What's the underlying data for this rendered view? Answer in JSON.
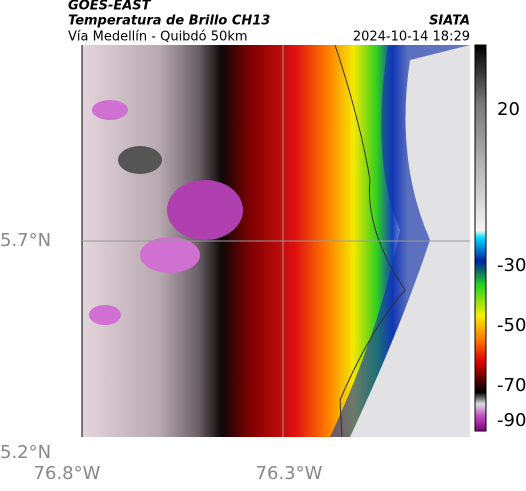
{
  "header": {
    "source": "GOES-EAST",
    "title": "Temperatura de Brillo CH13",
    "agency": "SIATA",
    "subtitle": "Vía Medellín - Quibdó 50km",
    "timestamp": "2024-10-14 18:29"
  },
  "map": {
    "lat_labels": [
      "5.7°N",
      "5.2°N"
    ],
    "lon_labels": [
      "76.8°W",
      "76.3°W"
    ]
  },
  "colorbar": {
    "ticks": [
      20,
      -30,
      -50,
      -70,
      -90
    ]
  }
}
